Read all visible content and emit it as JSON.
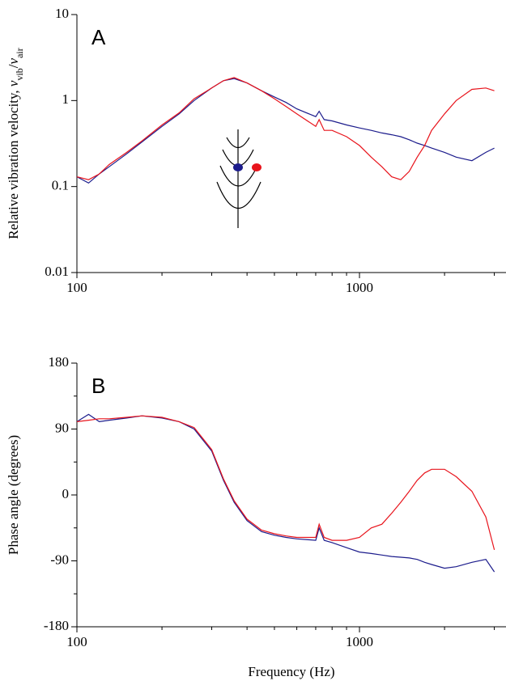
{
  "chart_data": [
    {
      "type": "line",
      "log_x": true,
      "log_y": true,
      "panel_label": "A",
      "ylabel_parts": [
        {
          "text": "Relative vibration velocity, "
        },
        {
          "text": "v",
          "italic": true
        },
        {
          "text": "vib",
          "sub": true
        },
        {
          "text": "/"
        },
        {
          "text": "v",
          "italic": true
        },
        {
          "text": "air",
          "sub": true
        }
      ],
      "x": [
        100,
        110,
        120,
        130,
        150,
        170,
        200,
        230,
        260,
        300,
        330,
        360,
        400,
        450,
        500,
        550,
        600,
        700,
        720,
        750,
        800,
        900,
        1000,
        1100,
        1200,
        1300,
        1400,
        1500,
        1600,
        1700,
        1800,
        2000,
        2200,
        2500,
        2800,
        3000
      ],
      "series": [
        {
          "color": "#1c1c8c",
          "values": [
            0.13,
            0.11,
            0.14,
            0.17,
            0.24,
            0.33,
            0.5,
            0.7,
            1.0,
            1.4,
            1.7,
            1.8,
            1.6,
            1.3,
            1.1,
            0.95,
            0.8,
            0.65,
            0.75,
            0.6,
            0.58,
            0.52,
            0.48,
            0.45,
            0.42,
            0.4,
            0.38,
            0.35,
            0.32,
            0.3,
            0.28,
            0.25,
            0.22,
            0.2,
            0.25,
            0.28
          ]
        },
        {
          "color": "#e8141c",
          "values": [
            0.13,
            0.12,
            0.14,
            0.18,
            0.25,
            0.34,
            0.52,
            0.72,
            1.05,
            1.4,
            1.7,
            1.85,
            1.6,
            1.3,
            1.05,
            0.85,
            0.7,
            0.5,
            0.6,
            0.45,
            0.45,
            0.38,
            0.3,
            0.22,
            0.17,
            0.13,
            0.12,
            0.15,
            0.22,
            0.3,
            0.45,
            0.7,
            1.0,
            1.35,
            1.4,
            1.3
          ]
        }
      ],
      "xlim": [
        100,
        3300
      ],
      "xticks": [
        100,
        1000
      ],
      "xminorticks": [
        200,
        300,
        400,
        500,
        600,
        700,
        800,
        900,
        2000,
        3000
      ],
      "ylim": [
        0.01,
        10
      ],
      "yticks": [
        0.01,
        0.1,
        1,
        10
      ]
    },
    {
      "type": "line",
      "log_x": true,
      "log_y": false,
      "panel_label": "B",
      "ylabel": "Phase angle (degrees)",
      "xlabel": "Frequency (Hz)",
      "x": [
        100,
        110,
        120,
        130,
        150,
        170,
        200,
        230,
        260,
        300,
        330,
        360,
        400,
        450,
        500,
        550,
        600,
        700,
        720,
        750,
        800,
        900,
        1000,
        1100,
        1200,
        1300,
        1400,
        1500,
        1600,
        1700,
        1800,
        2000,
        2200,
        2500,
        2800,
        3000
      ],
      "series": [
        {
          "color": "#1c1c8c",
          "values": [
            100,
            110,
            100,
            102,
            105,
            108,
            105,
            100,
            90,
            60,
            20,
            -10,
            -35,
            -50,
            -55,
            -58,
            -60,
            -62,
            -45,
            -62,
            -65,
            -72,
            -78,
            -80,
            -82,
            -84,
            -85,
            -86,
            -88,
            -92,
            -95,
            -100,
            -98,
            -92,
            -88,
            -105
          ]
        },
        {
          "color": "#e8141c",
          "values": [
            100,
            102,
            104,
            104,
            106,
            108,
            106,
            100,
            92,
            62,
            22,
            -8,
            -33,
            -48,
            -53,
            -56,
            -58,
            -58,
            -40,
            -58,
            -62,
            -62,
            -58,
            -45,
            -40,
            -25,
            -10,
            5,
            20,
            30,
            35,
            35,
            25,
            5,
            -30,
            -75
          ]
        }
      ],
      "xlim": [
        100,
        3300
      ],
      "xticks": [
        100,
        1000
      ],
      "xminorticks": [
        200,
        300,
        400,
        500,
        600,
        700,
        800,
        900,
        2000,
        3000
      ],
      "ylim": [
        -180,
        180
      ],
      "yticks": [
        -180,
        -90,
        0,
        90,
        180
      ],
      "yminorticks": [
        -135,
        -45,
        45,
        135
      ]
    }
  ]
}
